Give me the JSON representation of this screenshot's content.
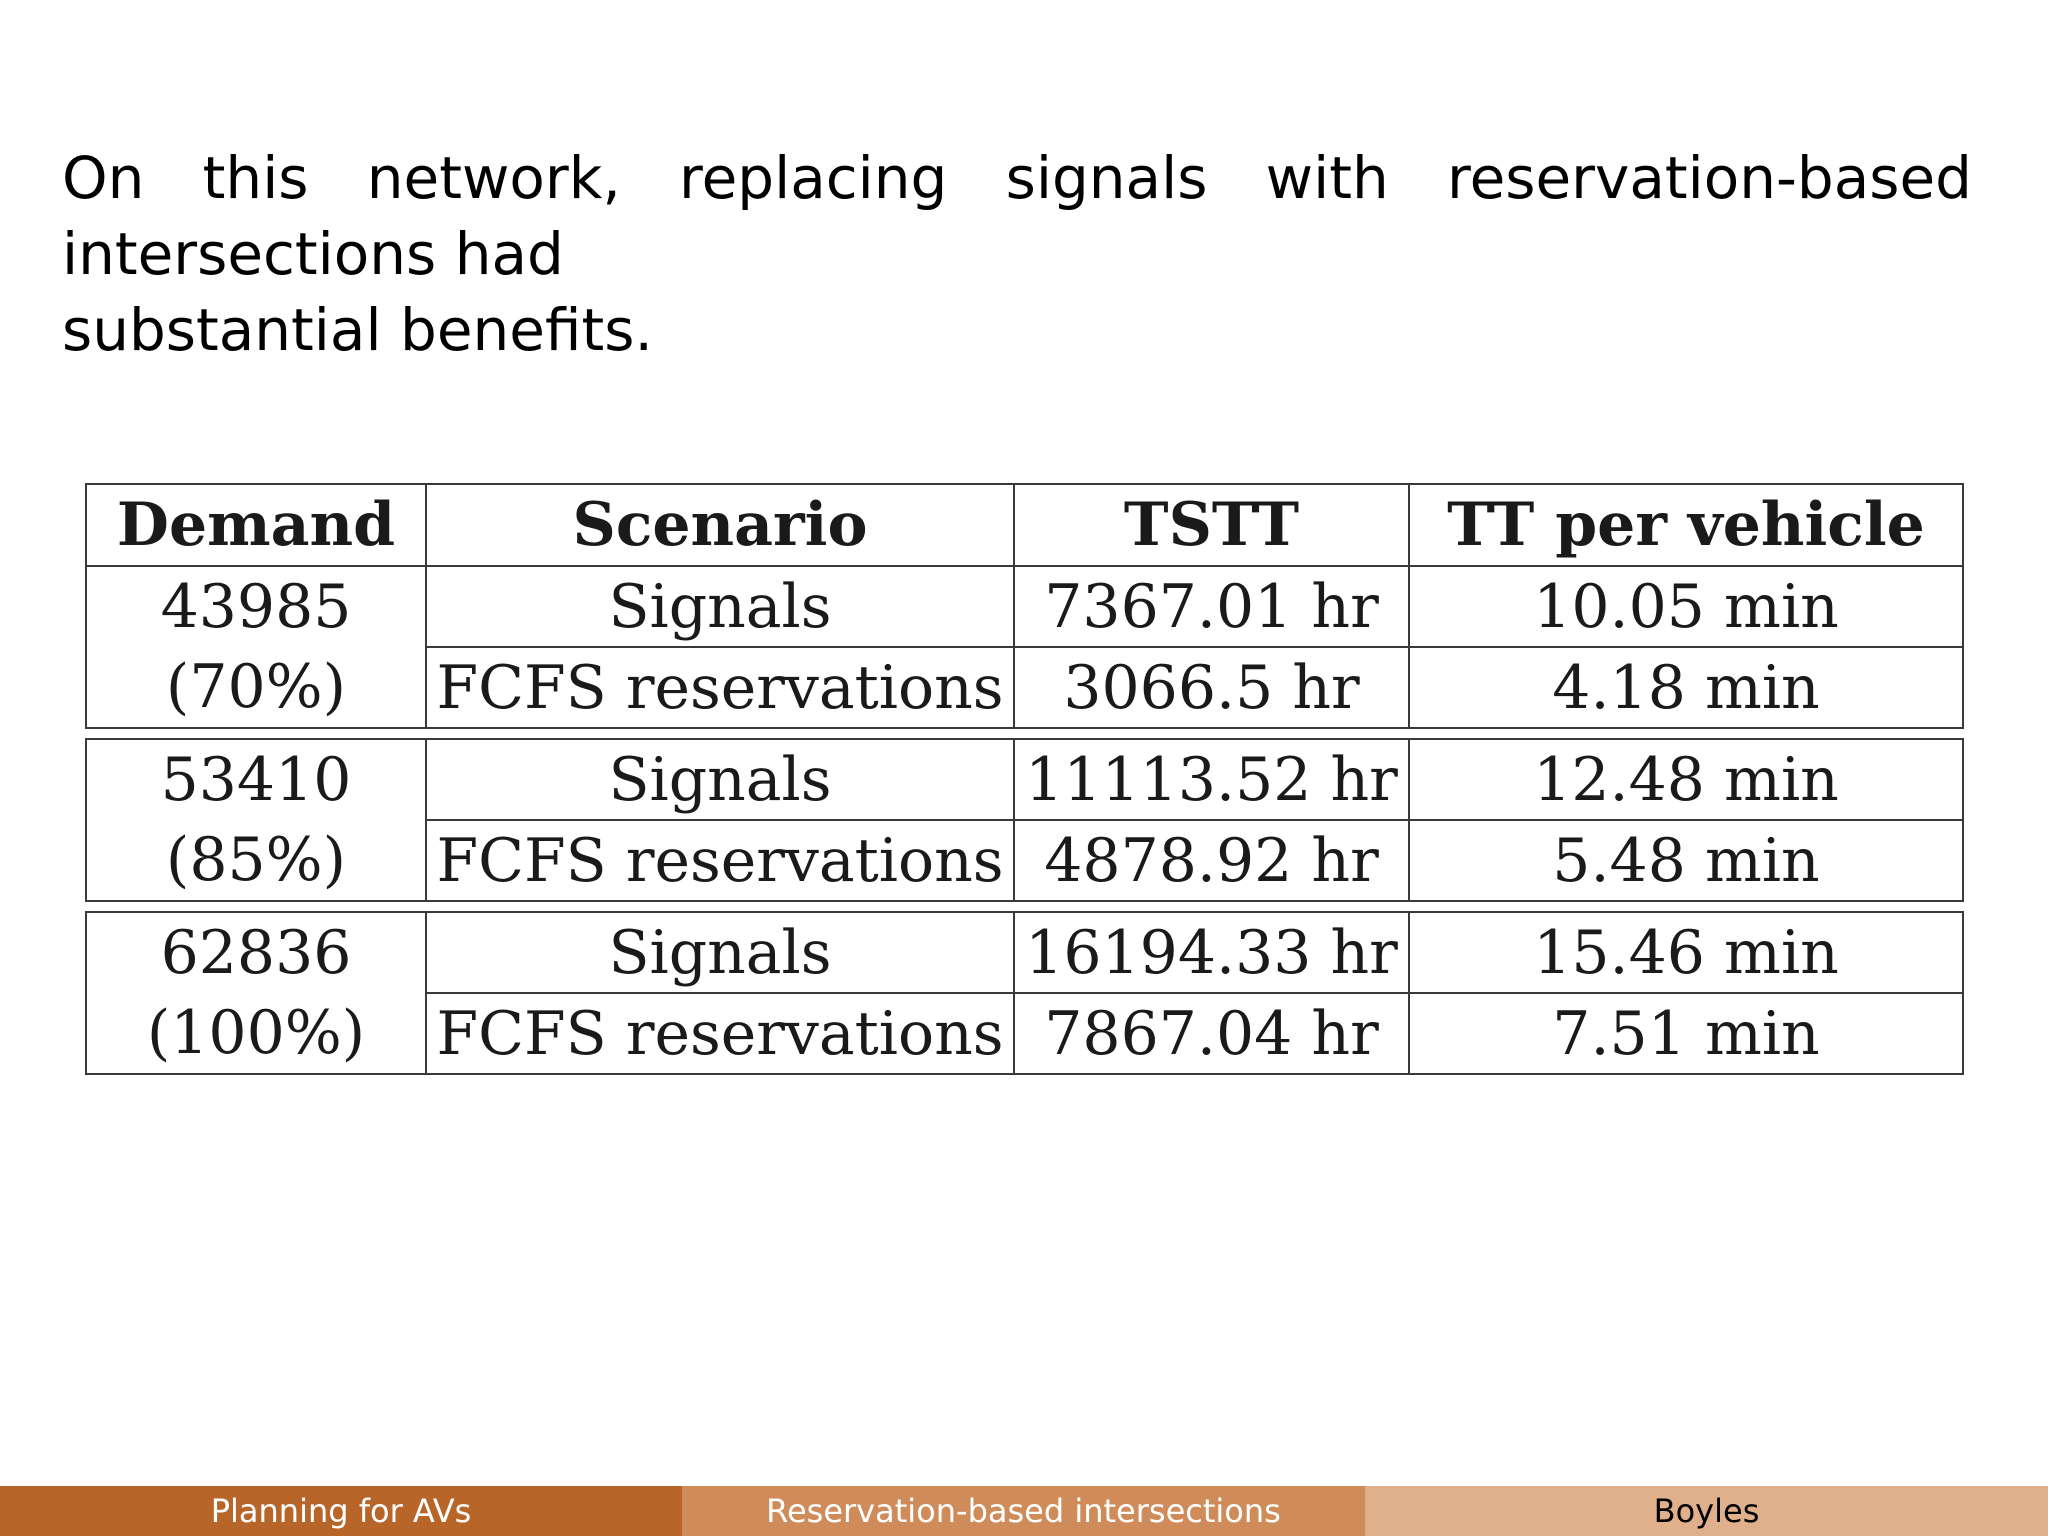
{
  "slide": {
    "text_line1": "On this network, replacing signals with reservation-based intersections had",
    "text_line2": "substantial benefits."
  },
  "table": {
    "headers": [
      "Demand",
      "Scenario",
      "TSTT",
      "TT per vehicle"
    ],
    "groups": [
      {
        "demand": "43985",
        "demand_pct": "(70%)",
        "rows": [
          {
            "scenario": "Signals",
            "tstt": "7367.01 hr",
            "tt_per_vehicle": "10.05 min"
          },
          {
            "scenario": "FCFS reservations",
            "tstt": "3066.5 hr",
            "tt_per_vehicle": "4.18 min"
          }
        ]
      },
      {
        "demand": "53410",
        "demand_pct": "(85%)",
        "rows": [
          {
            "scenario": "Signals",
            "tstt": "11113.52 hr",
            "tt_per_vehicle": "12.48 min"
          },
          {
            "scenario": "FCFS reservations",
            "tstt": "4878.92 hr",
            "tt_per_vehicle": "5.48 min"
          }
        ]
      },
      {
        "demand": "62836",
        "demand_pct": "(100%)",
        "rows": [
          {
            "scenario": "Signals",
            "tstt": "16194.33 hr",
            "tt_per_vehicle": "15.46 min"
          },
          {
            "scenario": "FCFS reservations",
            "tstt": "7867.04 hr",
            "tt_per_vehicle": "7.51 min"
          }
        ]
      }
    ]
  },
  "footer": {
    "left": "Planning for AVs",
    "center": "Reservation-based intersections",
    "right": "Boyles",
    "colors": [
      "#b8652a",
      "#cf8c5a",
      "#e0b08c"
    ]
  }
}
